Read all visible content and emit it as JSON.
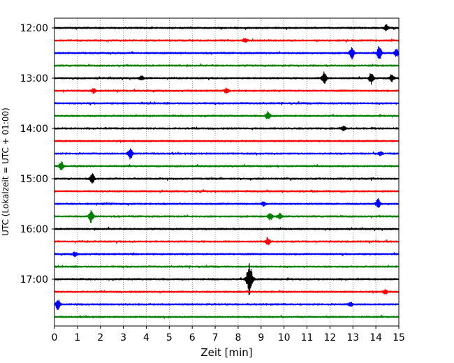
{
  "chart_data": {
    "type": "line",
    "title": "",
    "xlabel": "Zeit  [min]",
    "ylabel": "UTC (Lokalzeit = UTC + 01:00)",
    "xlim": [
      0,
      15
    ],
    "x_ticks": [
      "0",
      "1",
      "2",
      "3",
      "4",
      "5",
      "6",
      "7",
      "8",
      "9",
      "10",
      "11",
      "12",
      "13",
      "14",
      "15"
    ],
    "y_ticks": [
      "12:00",
      "13:00",
      "14:00",
      "15:00",
      "16:00",
      "17:00"
    ],
    "grid": "vertical dotted at each minute",
    "colors": [
      "#000000",
      "#ff0000",
      "#0000ff",
      "#008000"
    ],
    "series": [
      {
        "start": "12:00",
        "color": "#000000",
        "events": [
          {
            "t": 14.45,
            "amp": 4
          }
        ]
      },
      {
        "start": "12:15",
        "color": "#ff0000",
        "events": [
          {
            "t": 8.3,
            "amp": 3
          }
        ]
      },
      {
        "start": "12:30",
        "color": "#0000ff",
        "events": [
          {
            "t": 12.95,
            "amp": 9
          },
          {
            "t": 14.15,
            "amp": 10
          },
          {
            "t": 14.9,
            "amp": 6
          }
        ]
      },
      {
        "start": "12:45",
        "color": "#008000",
        "events": []
      },
      {
        "start": "13:00",
        "color": "#000000",
        "events": [
          {
            "t": 3.8,
            "amp": 3
          },
          {
            "t": 11.75,
            "amp": 10
          },
          {
            "t": 13.8,
            "amp": 8
          },
          {
            "t": 14.7,
            "amp": 5
          }
        ]
      },
      {
        "start": "13:15",
        "color": "#ff0000",
        "events": [
          {
            "t": 1.7,
            "amp": 3
          },
          {
            "t": 7.5,
            "amp": 3
          }
        ]
      },
      {
        "start": "13:30",
        "color": "#0000ff",
        "events": []
      },
      {
        "start": "13:45",
        "color": "#008000",
        "events": [
          {
            "t": 9.3,
            "amp": 6
          }
        ]
      },
      {
        "start": "14:00",
        "color": "#000000",
        "events": [
          {
            "t": 12.6,
            "amp": 3
          }
        ]
      },
      {
        "start": "14:15",
        "color": "#ff0000",
        "events": []
      },
      {
        "start": "14:30",
        "color": "#0000ff",
        "events": [
          {
            "t": 3.3,
            "amp": 8
          },
          {
            "t": 14.2,
            "amp": 3
          }
        ]
      },
      {
        "start": "14:45",
        "color": "#008000",
        "events": [
          {
            "t": 0.3,
            "amp": 6
          }
        ]
      },
      {
        "start": "15:00",
        "color": "#000000",
        "events": [
          {
            "t": 1.65,
            "amp": 7
          }
        ]
      },
      {
        "start": "15:15",
        "color": "#ff0000",
        "events": []
      },
      {
        "start": "15:30",
        "color": "#0000ff",
        "events": [
          {
            "t": 9.1,
            "amp": 3
          },
          {
            "t": 14.1,
            "amp": 7
          }
        ]
      },
      {
        "start": "15:45",
        "color": "#008000",
        "events": [
          {
            "t": 1.6,
            "amp": 9
          },
          {
            "t": 9.4,
            "amp": 6
          },
          {
            "t": 9.8,
            "amp": 4
          }
        ]
      },
      {
        "start": "16:00",
        "color": "#000000",
        "events": []
      },
      {
        "start": "16:15",
        "color": "#ff0000",
        "events": [
          {
            "t": 9.3,
            "amp": 5
          }
        ]
      },
      {
        "start": "16:30",
        "color": "#0000ff",
        "events": [
          {
            "t": 0.9,
            "amp": 3
          }
        ]
      },
      {
        "start": "16:45",
        "color": "#008000",
        "events": []
      },
      {
        "start": "17:00",
        "color": "#000000",
        "events": [
          {
            "t": 8.5,
            "amp": 23
          }
        ]
      },
      {
        "start": "17:15",
        "color": "#ff0000",
        "events": [
          {
            "t": 14.4,
            "amp": 3
          }
        ]
      },
      {
        "start": "17:30",
        "color": "#0000ff",
        "events": [
          {
            "t": 0.15,
            "amp": 8
          },
          {
            "t": 12.9,
            "amp": 3
          }
        ]
      },
      {
        "start": "17:45",
        "color": "#008000",
        "events": []
      }
    ]
  }
}
